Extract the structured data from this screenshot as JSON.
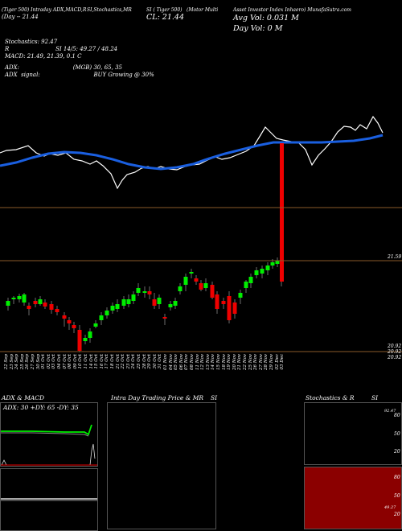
{
  "header": {
    "line1": "(Tiger 500) Intraday ADX,MACD,R",
    "line1b": "SI,Stochastics,MR",
    "line1c": "SI ( Tiger 500)",
    "line1d": "(Motor Multi",
    "line1e": "Asset Investor Index Inhaero) MunafaSutra.com",
    "line2a": "CL: 21.44",
    "line2b": "(Day  -- 21.44",
    "avg_vol": "Avg Vol: 0.031 M",
    "day_vol": "Day Vol: 0  M",
    "stochastics": "Stochastics: 92.47",
    "rsi": "R                          SI 14/5: 49.27 / 48.24",
    "macd": "MACD: 21.49, 21.39, 0.1 C",
    "adx": "ADX:                              (MGB) 30, 65, 35",
    "adx_signal": "ADX  signal:                              BUY Growing @ 30%"
  },
  "price_labels": {
    "p1": "21.59",
    "p2": "20.92",
    "p3": "20.92",
    "p4": "20.92"
  },
  "dates": [
    "22 Sep",
    "23 Sep",
    "24 Sep",
    "25 Sep",
    "26 Sep",
    "27 Sep",
    "30 Sep",
    "01 Oct",
    "02 Oct",
    "03 Oct",
    "04 Oct",
    "07 Oct",
    "08 Oct",
    "09 Oct",
    "10 Oct",
    "11 Oct",
    "14 Oct",
    "15 Oct",
    "16 Oct",
    "17 Oct",
    "18 Oct",
    "21 Oct",
    "22 Oct",
    "23 Oct",
    "24 Oct",
    "25 Oct",
    "28 Oct",
    "29 Oct",
    "30 Oct",
    "31 Oct",
    "01 Nov",
    "04 Nov",
    "05 Nov",
    "06 Nov",
    "07 Nov",
    "08 Nov",
    "11 Nov",
    "12 Nov",
    "13 Nov",
    "14 Nov",
    "15 Nov",
    "18 Nov",
    "19 Nov",
    "20 Nov",
    "21 Nov",
    "22 Nov",
    "25 Nov",
    "26 Nov",
    "27 Nov",
    "28 Nov",
    "29 Nov",
    "02 Dec",
    "03 Dec"
  ],
  "panels": {
    "adx_title": "ADX  & MACD",
    "adx_readout": "ADX: 30  +DY: 65  -DY: 35",
    "intraday_title": "Intra  Day Trading Price  & MR",
    "intraday_title_b": "SI",
    "stoch_title": "Stochastics & R",
    "stoch_title_b": "SI",
    "stoch_tick_80": "80",
    "stoch_tick_50": "50",
    "stoch_tick_20": "20",
    "stoch_tick_bottom": "0",
    "stoch_val": "92.47",
    "rsi_tick_80": "80",
    "rsi_tick_50": "50",
    "rsi_tick_20": "20",
    "rsi_tick_bottom": "0",
    "rsi_val": "49.27"
  },
  "colors": {
    "price_line": "#ffffff",
    "ma_line": "#1a5fe0",
    "bull": "#00ee00",
    "bear": "#ee0000",
    "level_line": "#8a5a2a",
    "rsi_bg": "#8b0000"
  }
}
